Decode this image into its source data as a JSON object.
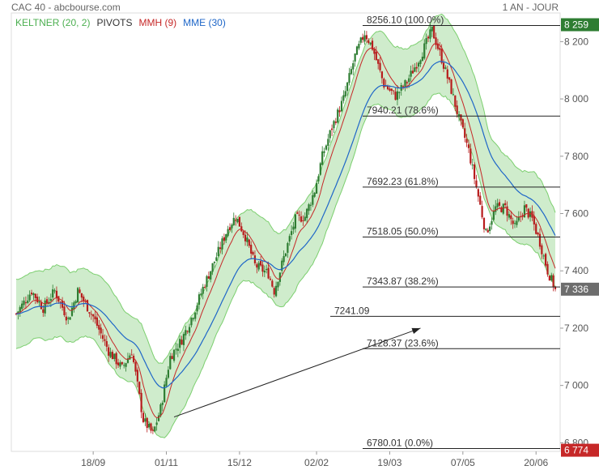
{
  "header": {
    "source": "CAC 40 - abcbourse.com",
    "period": "1 AN - JOUR"
  },
  "indicators": [
    {
      "label": "KELTNER (20, 2)",
      "color": "#4caf50"
    },
    {
      "label": "PIVOTS",
      "color": "#333333"
    },
    {
      "label": "MMH (9)",
      "color": "#c62828"
    },
    {
      "label": "MME (30)",
      "color": "#1e66c8"
    }
  ],
  "colors": {
    "up": "#2e7d32",
    "down": "#b71c1c",
    "keltner_fill": "#cfeccc",
    "keltner_line": "#7ccf6f",
    "mme": "#1e66c8",
    "mmh": "#c62828",
    "tag_green": "#2e7d32",
    "tag_red": "#c62828",
    "tag_gray": "#6d6d6d"
  },
  "chart_data": {
    "type": "candlestick",
    "x_ticks": [
      "18/09",
      "01/11",
      "15/12",
      "02/02",
      "19/03",
      "07/05",
      "20/06"
    ],
    "y_ticks": [
      "6 800",
      "7 000",
      "7 200",
      "7 400",
      "7 600",
      "7 800",
      "8 000",
      "8 200"
    ],
    "ylim": [
      6770,
      8300
    ],
    "price_tags": [
      {
        "label": "8 259",
        "value": 8259,
        "color": "green"
      },
      {
        "label": "7 336",
        "value": 7336,
        "color": "gray"
      },
      {
        "label": "6 774",
        "value": 6774,
        "color": "red"
      }
    ],
    "levels": [
      {
        "label": "8256.10  (100.0%)",
        "value": 8256.1
      },
      {
        "label": "7940.21  (78.6%)",
        "value": 7940.21
      },
      {
        "label": "7692.23  (61.8%)",
        "value": 7692.23
      },
      {
        "label": "7518.05  (50.0%)",
        "value": 7518.05
      },
      {
        "label": "7343.87  (38.2%)",
        "value": 7343.87
      },
      {
        "label": "7241.09",
        "value": 7241.09
      },
      {
        "label": "7128.37  (23.6%)",
        "value": 7128.37
      },
      {
        "label": "6780.01  (0.0%)",
        "value": 6780.01
      }
    ],
    "trend_arrow": {
      "from": [
        82,
        6890
      ],
      "to": [
        210,
        7200
      ]
    },
    "path": [
      [
        0,
        7250
      ],
      [
        8,
        7330
      ],
      [
        14,
        7270
      ],
      [
        20,
        7330
      ],
      [
        27,
        7230
      ],
      [
        32,
        7330
      ],
      [
        40,
        7240
      ],
      [
        48,
        7120
      ],
      [
        55,
        7060
      ],
      [
        60,
        7120
      ],
      [
        66,
        6880
      ],
      [
        71,
        6830
      ],
      [
        75,
        6920
      ],
      [
        80,
        7100
      ],
      [
        86,
        7160
      ],
      [
        92,
        7250
      ],
      [
        97,
        7340
      ],
      [
        104,
        7450
      ],
      [
        110,
        7550
      ],
      [
        114,
        7590
      ],
      [
        119,
        7520
      ],
      [
        124,
        7420
      ],
      [
        131,
        7390
      ],
      [
        134,
        7330
      ],
      [
        140,
        7470
      ],
      [
        145,
        7580
      ],
      [
        150,
        7590
      ],
      [
        155,
        7680
      ],
      [
        159,
        7800
      ],
      [
        164,
        7900
      ],
      [
        170,
        8000
      ],
      [
        176,
        8150
      ],
      [
        181,
        8230
      ],
      [
        185,
        8180
      ],
      [
        191,
        8050
      ],
      [
        197,
        8010
      ],
      [
        203,
        8060
      ],
      [
        210,
        8150
      ],
      [
        216,
        8240
      ],
      [
        221,
        8140
      ],
      [
        226,
        8030
      ],
      [
        230,
        7930
      ],
      [
        235,
        7820
      ],
      [
        240,
        7660
      ],
      [
        244,
        7530
      ],
      [
        249,
        7620
      ],
      [
        254,
        7620
      ],
      [
        259,
        7550
      ],
      [
        264,
        7620
      ],
      [
        268,
        7580
      ],
      [
        272,
        7500
      ],
      [
        276,
        7400
      ],
      [
        280,
        7336
      ]
    ]
  }
}
